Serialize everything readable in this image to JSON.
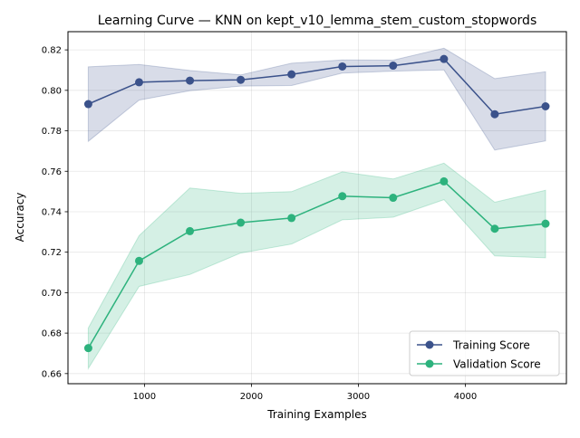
{
  "chart_data": {
    "type": "line",
    "title": "Learning Curve — KNN on kept_v10_lemma_stem_custom_stopwords",
    "xlabel": "Training Examples",
    "ylabel": "Accuracy",
    "xlim": [
      285,
      4945
    ],
    "ylim": [
      0.655,
      0.829
    ],
    "xticks": [
      1000,
      2000,
      3000,
      4000
    ],
    "yticks": [
      0.66,
      0.68,
      0.7,
      0.72,
      0.74,
      0.76,
      0.78,
      0.8,
      0.82
    ],
    "x": [
      475,
      950,
      1425,
      1900,
      2375,
      2850,
      3325,
      3800,
      4275,
      4750
    ],
    "grid": true,
    "legend_position": "lower right",
    "series": [
      {
        "name": "Training Score",
        "color": "#3b528b",
        "band_color": "#3b528b",
        "values": [
          0.7932,
          0.804,
          0.8048,
          0.8052,
          0.8079,
          0.8118,
          0.8122,
          0.8155,
          0.7882,
          0.7921
        ],
        "lower": [
          0.7748,
          0.7952,
          0.7998,
          0.8021,
          0.8024,
          0.8085,
          0.8095,
          0.8101,
          0.7705,
          0.775
        ],
        "upper": [
          0.8116,
          0.8128,
          0.8098,
          0.8076,
          0.8134,
          0.815,
          0.8149,
          0.8208,
          0.8058,
          0.8092
        ]
      },
      {
        "name": "Validation Score",
        "color": "#2db27d",
        "band_color": "#2db27d",
        "values": [
          0.6726,
          0.7157,
          0.7304,
          0.7346,
          0.7369,
          0.7477,
          0.7469,
          0.755,
          0.7316,
          0.7341
        ],
        "lower": [
          0.6625,
          0.7031,
          0.709,
          0.7196,
          0.724,
          0.736,
          0.7373,
          0.746,
          0.7182,
          0.7172
        ],
        "upper": [
          0.6825,
          0.7282,
          0.7517,
          0.7491,
          0.7499,
          0.7597,
          0.7562,
          0.764,
          0.7447,
          0.7506
        ]
      }
    ]
  }
}
